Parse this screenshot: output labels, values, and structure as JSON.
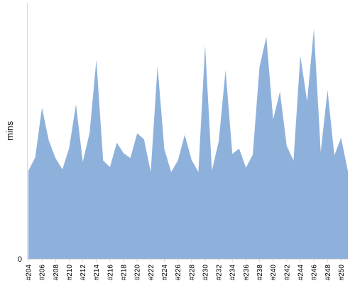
{
  "chart_data": {
    "type": "area",
    "ylabel": "mins",
    "y_tick_labels": [
      "0"
    ],
    "ylim": [
      0,
      100
    ],
    "x_tick_labels": [
      "#204",
      "#206",
      "#208",
      "#210",
      "#212",
      "#214",
      "#216",
      "#218",
      "#220",
      "#222",
      "#224",
      "#226",
      "#228",
      "#230",
      "#232",
      "#234",
      "#236",
      "#238",
      "#240",
      "#242",
      "#244",
      "#246",
      "#248",
      "#250"
    ],
    "x": [
      204,
      205,
      206,
      207,
      208,
      209,
      210,
      211,
      212,
      213,
      214,
      215,
      216,
      217,
      218,
      219,
      220,
      221,
      222,
      223,
      224,
      225,
      226,
      227,
      228,
      229,
      230,
      231,
      232,
      233,
      234,
      235,
      236,
      237,
      238,
      239,
      240,
      241,
      242,
      243,
      244,
      245,
      246,
      247,
      248,
      249,
      250,
      251
    ],
    "series": [
      {
        "values": [
          36,
          41.5,
          61.8,
          48.4,
          41.1,
          36.6,
          45.3,
          63.2,
          39.6,
          51.5,
          81.4,
          40.2,
          37.5,
          47.5,
          43.2,
          41.2,
          51.3,
          48.9,
          35.5,
          78.9,
          44.8,
          35.5,
          40.2,
          50.7,
          40.5,
          35.5,
          87.2,
          36.1,
          48.1,
          77.2,
          42.9,
          45.1,
          37.3,
          42.6,
          78.4,
          90.8,
          57,
          68.4,
          46.2,
          40.2,
          83.1,
          64.3,
          94.1,
          43.7,
          69,
          42.3,
          49.5,
          35.8
        ],
        "color": "#8eb1dc"
      }
    ],
    "grid": false,
    "legend": "none"
  }
}
